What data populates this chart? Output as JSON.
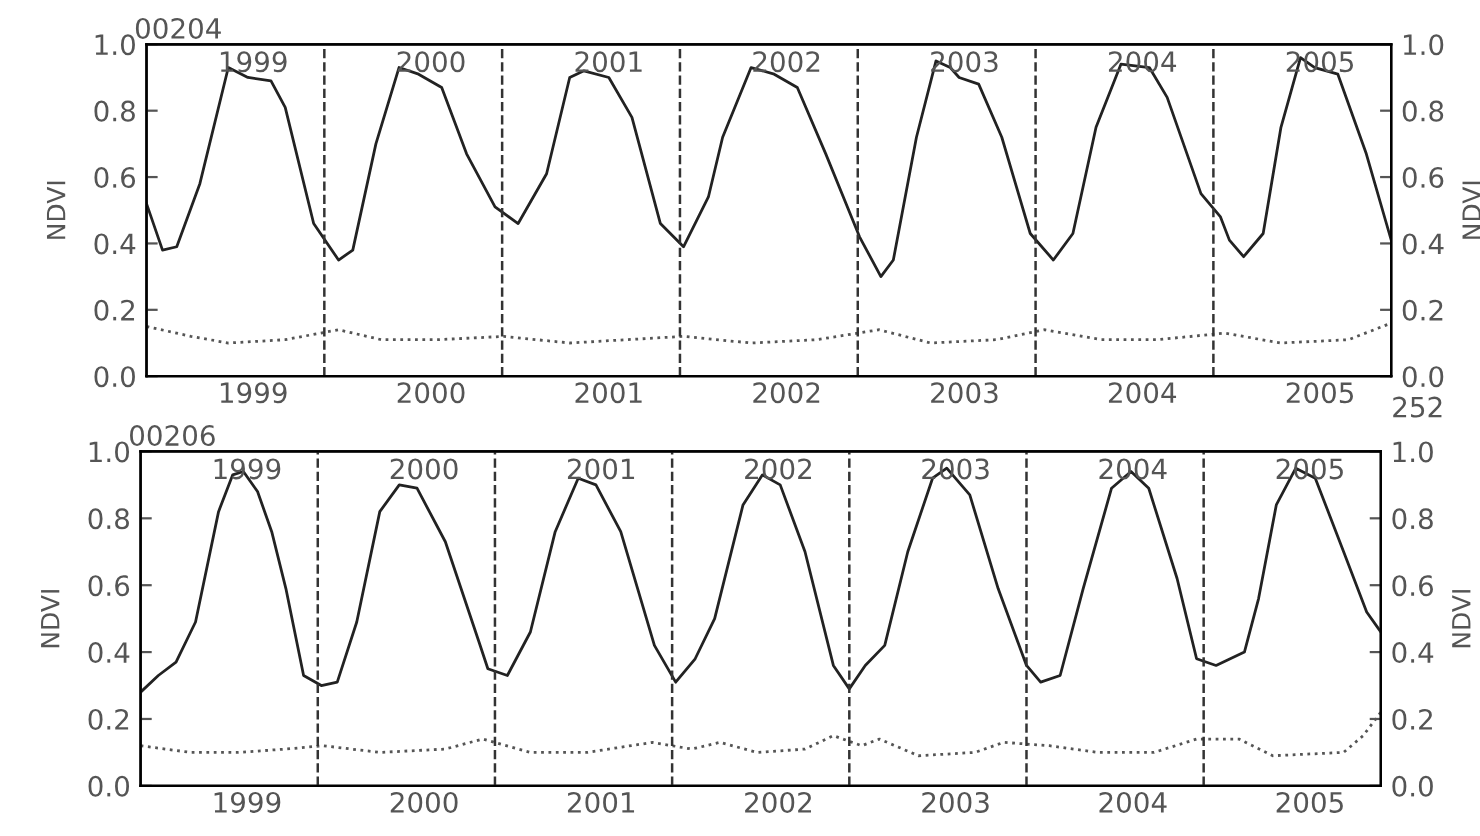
{
  "chart_data": [
    {
      "type": "line",
      "title": "00204",
      "ylabel": "NDVI",
      "y2label": "NDVI",
      "xlim": [
        1998.4,
        2005.4
      ],
      "ylim": [
        0,
        1
      ],
      "y2lim": [
        0,
        1
      ],
      "xticks": [
        1999,
        2000,
        2001,
        2002,
        2003,
        2004,
        2005
      ],
      "x2lim": [
        1998.4,
        2005.4
      ],
      "x2ticks": [
        1999,
        2000,
        2001,
        2002,
        2003,
        2004,
        2005
      ],
      "yticks": [
        {
          "value": 0,
          "label": "0.0"
        },
        {
          "value": 0.2,
          "label": "0.2"
        },
        {
          "value": 0.4,
          "label": "0.4"
        },
        {
          "value": 0.6,
          "label": "0.6"
        },
        {
          "value": 0.8,
          "label": "0.8"
        },
        {
          "value": 1,
          "label": "1.0"
        }
      ],
      "y2ticks": [
        {
          "value": 0,
          "label": "0.0"
        },
        {
          "value": 0.2,
          "label": "0.2"
        },
        {
          "value": 0.4,
          "label": "0.4"
        },
        {
          "value": 0.6,
          "label": "0.6"
        },
        {
          "value": 0.8,
          "label": "0.8"
        },
        {
          "value": 1,
          "label": "1.0"
        }
      ],
      "grid": false,
      "legend": false,
      "marker": "none",
      "ref_lines": [
        {
          "axis": "x",
          "value": 1999.4,
          "line_style": "dashed",
          "color": "#333333"
        },
        {
          "axis": "x",
          "value": 2000.4,
          "line_style": "dashed",
          "color": "#333333"
        },
        {
          "axis": "x",
          "value": 2001.4,
          "line_style": "dashed",
          "color": "#333333"
        },
        {
          "axis": "x",
          "value": 2002.4,
          "line_style": "dashed",
          "color": "#333333"
        },
        {
          "axis": "x",
          "value": 2003.4,
          "line_style": "dashed",
          "color": "#333333"
        },
        {
          "axis": "x",
          "value": 2004.4,
          "line_style": "dashed",
          "color": "#333333"
        }
      ],
      "annotations": [
        "252"
      ],
      "series": [
        {
          "color": "#222222",
          "line_style": "solid",
          "x": [
            1998.4,
            1998.49,
            1998.57,
            1998.7,
            1998.86,
            1998.97,
            1999.1,
            1999.18,
            1999.34,
            1999.48,
            1999.56,
            1999.69,
            1999.82,
            1999.93,
            2000.06,
            2000.2,
            2000.36,
            2000.49,
            2000.65,
            2000.78,
            2000.86,
            2001.0,
            2001.13,
            2001.29,
            2001.42,
            2001.56,
            2001.64,
            2001.8,
            2001.93,
            2002.06,
            2002.22,
            2002.41,
            2002.53,
            2002.6,
            2002.73,
            2002.84,
            2002.92,
            2002.97,
            2003.08,
            2003.21,
            2003.37,
            2003.5,
            2003.61,
            2003.74,
            2003.88,
            2004.04,
            2004.14,
            2004.33,
            2004.44,
            2004.49,
            2004.57,
            2004.68,
            2004.78,
            2004.89,
            2004.97,
            2005.1,
            2005.26,
            2005.4
          ],
          "values": [
            0.52,
            0.38,
            0.39,
            0.58,
            0.93,
            0.9,
            0.89,
            0.81,
            0.46,
            0.35,
            0.38,
            0.7,
            0.93,
            0.91,
            0.87,
            0.67,
            0.51,
            0.46,
            0.61,
            0.9,
            0.92,
            0.9,
            0.78,
            0.46,
            0.39,
            0.54,
            0.72,
            0.93,
            0.91,
            0.87,
            0.67,
            0.42,
            0.3,
            0.35,
            0.72,
            0.95,
            0.93,
            0.9,
            0.88,
            0.72,
            0.43,
            0.35,
            0.43,
            0.75,
            0.94,
            0.93,
            0.84,
            0.55,
            0.48,
            0.41,
            0.36,
            0.43,
            0.75,
            0.96,
            0.93,
            0.91,
            0.67,
            0.41
          ]
        },
        {
          "color": "#555555",
          "line_style": "dotted",
          "x": [
            1998.4,
            1998.65,
            1998.86,
            1999.18,
            1999.48,
            1999.72,
            2000.04,
            2000.41,
            2000.78,
            2001.1,
            2001.42,
            2001.8,
            2002.17,
            2002.52,
            2002.81,
            2003.18,
            2003.45,
            2003.77,
            2004.09,
            2004.46,
            2004.78,
            2005.16,
            2005.4
          ],
          "values": [
            0.15,
            0.12,
            0.1,
            0.11,
            0.14,
            0.11,
            0.11,
            0.12,
            0.1,
            0.11,
            0.12,
            0.1,
            0.11,
            0.14,
            0.1,
            0.11,
            0.14,
            0.11,
            0.11,
            0.13,
            0.1,
            0.11,
            0.16
          ]
        }
      ]
    },
    {
      "type": "line",
      "title": "00206",
      "ylabel": "NDVI",
      "y2label": "NDVI",
      "xlim": [
        1998.4,
        2005.4
      ],
      "ylim": [
        0,
        1
      ],
      "y2lim": [
        0,
        1
      ],
      "xticks": [
        1999,
        2000,
        2001,
        2002,
        2003,
        2004,
        2005
      ],
      "x2lim": [
        1998.4,
        2005.4
      ],
      "x2ticks": [
        1999,
        2000,
        2001,
        2002,
        2003,
        2004,
        2005
      ],
      "yticks": [
        {
          "value": 0,
          "label": "0.0"
        },
        {
          "value": 0.2,
          "label": "0.2"
        },
        {
          "value": 0.4,
          "label": "0.4"
        },
        {
          "value": 0.6,
          "label": "0.6"
        },
        {
          "value": 0.8,
          "label": "0.8"
        },
        {
          "value": 1,
          "label": "1.0"
        }
      ],
      "y2ticks": [
        {
          "value": 0,
          "label": "0.0"
        },
        {
          "value": 0.2,
          "label": "0.2"
        },
        {
          "value": 0.4,
          "label": "0.4"
        },
        {
          "value": 0.6,
          "label": "0.6"
        },
        {
          "value": 0.8,
          "label": "0.8"
        },
        {
          "value": 1,
          "label": "1.0"
        }
      ],
      "grid": false,
      "legend": false,
      "marker": "none",
      "ref_lines": [
        {
          "axis": "x",
          "value": 1999.4,
          "line_style": "dashed",
          "color": "#333333"
        },
        {
          "axis": "x",
          "value": 2000.4,
          "line_style": "dashed",
          "color": "#333333"
        },
        {
          "axis": "x",
          "value": 2001.4,
          "line_style": "dashed",
          "color": "#333333"
        },
        {
          "axis": "x",
          "value": 2002.4,
          "line_style": "dashed",
          "color": "#333333"
        },
        {
          "axis": "x",
          "value": 2003.4,
          "line_style": "dashed",
          "color": "#333333"
        },
        {
          "axis": "x",
          "value": 2004.4,
          "line_style": "dashed",
          "color": "#333333"
        }
      ],
      "series": [
        {
          "color": "#222222",
          "line_style": "solid",
          "x": [
            1998.4,
            1998.5,
            1998.6,
            1998.71,
            1998.84,
            1998.92,
            1998.98,
            1999.06,
            1999.14,
            1999.22,
            1999.32,
            1999.42,
            1999.51,
            1999.62,
            1999.75,
            1999.86,
            1999.96,
            2000.12,
            2000.31,
            2000.36,
            2000.47,
            2000.6,
            2000.74,
            2000.87,
            2000.97,
            2001.11,
            2001.3,
            2001.42,
            2001.53,
            2001.64,
            2001.8,
            2001.91,
            2002.01,
            2002.15,
            2002.31,
            2002.4,
            2002.49,
            2002.6,
            2002.73,
            2002.87,
            2002.95,
            2003.08,
            2003.24,
            2003.4,
            2003.48,
            2003.59,
            2003.72,
            2003.88,
            2003.99,
            2004.09,
            2004.25,
            2004.36,
            2004.47,
            2004.63,
            2004.71,
            2004.81,
            2004.92,
            2005.03,
            2005.19,
            2005.32,
            2005.4
          ],
          "values": [
            0.28,
            0.33,
            0.37,
            0.49,
            0.82,
            0.93,
            0.94,
            0.88,
            0.76,
            0.59,
            0.33,
            0.3,
            0.31,
            0.49,
            0.82,
            0.9,
            0.89,
            0.73,
            0.43,
            0.35,
            0.33,
            0.46,
            0.76,
            0.92,
            0.9,
            0.76,
            0.42,
            0.31,
            0.38,
            0.5,
            0.84,
            0.93,
            0.9,
            0.7,
            0.36,
            0.29,
            0.36,
            0.42,
            0.7,
            0.92,
            0.95,
            0.87,
            0.59,
            0.36,
            0.31,
            0.33,
            0.59,
            0.89,
            0.94,
            0.89,
            0.62,
            0.38,
            0.36,
            0.4,
            0.56,
            0.84,
            0.95,
            0.92,
            0.7,
            0.52,
            0.46
          ]
        },
        {
          "color": "#555555",
          "line_style": "dotted",
          "x": [
            1998.4,
            1998.68,
            1998.95,
            1999.22,
            1999.43,
            1999.75,
            2000.12,
            2000.33,
            2000.6,
            2000.92,
            2001.29,
            2001.51,
            2001.67,
            2001.88,
            2002.15,
            2002.31,
            2002.47,
            2002.57,
            2002.79,
            2003.11,
            2003.27,
            2003.53,
            2003.8,
            2004.12,
            2004.36,
            2004.6,
            2004.79,
            2005.19,
            2005.3,
            2005.4
          ],
          "values": [
            0.12,
            0.1,
            0.1,
            0.11,
            0.12,
            0.1,
            0.11,
            0.14,
            0.1,
            0.1,
            0.13,
            0.11,
            0.13,
            0.1,
            0.11,
            0.15,
            0.12,
            0.14,
            0.09,
            0.1,
            0.13,
            0.12,
            0.1,
            0.1,
            0.14,
            0.14,
            0.09,
            0.1,
            0.15,
            0.22
          ]
        }
      ]
    }
  ]
}
